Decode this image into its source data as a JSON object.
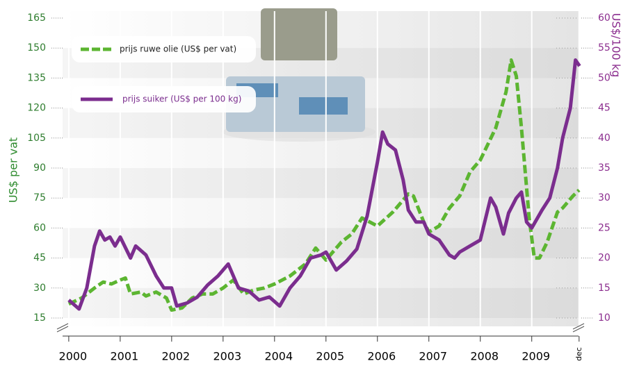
{
  "chart_data": {
    "type": "line",
    "y_label": "US$ per vat",
    "y2_label": "US$/100 kg",
    "xlim": [
      1999.88,
      2009.95
    ],
    "xticks": [
      2000,
      2001,
      2002,
      2003,
      2004,
      2005,
      2006,
      2007,
      2008,
      2009,
      {
        "value": 2009.92,
        "label": "dec"
      }
    ],
    "ylim": [
      15,
      165
    ],
    "yticks": [
      15,
      30,
      45,
      60,
      75,
      90,
      105,
      120,
      135,
      150,
      165
    ],
    "y2lim": [
      10,
      60
    ],
    "y2ticks": [
      10,
      15,
      20,
      25,
      30,
      35,
      40,
      45,
      50,
      55,
      60
    ],
    "grid": true,
    "series": [
      {
        "name": "prijs ruwe olie (US$ per vat)",
        "color": "#5cb531",
        "dashed": true,
        "x": [
          2000.0,
          2000.25,
          2000.5,
          2000.67,
          2000.83,
          2001.0,
          2001.1,
          2001.2,
          2001.4,
          2001.5,
          2001.7,
          2001.9,
          2002.0,
          2002.2,
          2002.4,
          2002.6,
          2002.8,
          2003.0,
          2003.2,
          2003.4,
          2003.6,
          2003.8,
          2004.0,
          2004.3,
          2004.6,
          2004.8,
          2005.0,
          2005.3,
          2005.5,
          2005.7,
          2006.0,
          2006.3,
          2006.6,
          2006.7,
          2006.9,
          2007.0,
          2007.2,
          2007.4,
          2007.6,
          2007.8,
          2008.0,
          2008.3,
          2008.5,
          2008.6,
          2008.7,
          2008.8,
          2008.95,
          2009.05,
          2009.15,
          2009.3,
          2009.5,
          2009.6,
          2009.8,
          2009.92
        ],
        "values": [
          22,
          25,
          30,
          33,
          32,
          34,
          35,
          27,
          28,
          26,
          28,
          25,
          19,
          20,
          25,
          27,
          27,
          30,
          34,
          27,
          29,
          30,
          32,
          36,
          42,
          50,
          44,
          53,
          57,
          65,
          61,
          68,
          77,
          76,
          63,
          58,
          61,
          70,
          76,
          88,
          94,
          110,
          128,
          144,
          136,
          110,
          65,
          45,
          45,
          53,
          68,
          70,
          76,
          79
        ]
      },
      {
        "name": "prijs suiker (US$ per 100 kg)",
        "color": "#7b2d8e",
        "dashed": false,
        "axis": "y2",
        "x": [
          2000.0,
          2000.2,
          2000.35,
          2000.5,
          2000.6,
          2000.7,
          2000.8,
          2000.9,
          2001.0,
          2001.2,
          2001.3,
          2001.5,
          2001.7,
          2001.85,
          2002.0,
          2002.1,
          2002.3,
          2002.5,
          2002.7,
          2002.9,
          2003.1,
          2003.3,
          2003.5,
          2003.7,
          2003.9,
          2004.1,
          2004.3,
          2004.5,
          2004.7,
          2004.9,
          2005.0,
          2005.2,
          2005.4,
          2005.6,
          2005.8,
          2006.0,
          2006.1,
          2006.2,
          2006.35,
          2006.5,
          2006.6,
          2006.75,
          2006.9,
          2007.0,
          2007.2,
          2007.4,
          2007.5,
          2007.6,
          2007.8,
          2008.0,
          2008.2,
          2008.3,
          2008.45,
          2008.55,
          2008.7,
          2008.8,
          2008.9,
          2009.0,
          2009.2,
          2009.35,
          2009.5,
          2009.6,
          2009.75,
          2009.85,
          2009.93
        ],
        "values": [
          13,
          11.5,
          15,
          22,
          24.5,
          23,
          23.5,
          22,
          23.5,
          20,
          22,
          20.5,
          17,
          15,
          15,
          12,
          12.5,
          13.5,
          15.5,
          17,
          19,
          15,
          14.5,
          13,
          13.5,
          12,
          15,
          17,
          20,
          20.5,
          21,
          18,
          19.5,
          21.5,
          27,
          36,
          41,
          39,
          38,
          33,
          28,
          26,
          26,
          24,
          23,
          20.5,
          20,
          21,
          22,
          23,
          30,
          28.5,
          24,
          27.5,
          30,
          31,
          26,
          25,
          28,
          30,
          35,
          40,
          45,
          53,
          52
        ]
      }
    ]
  }
}
